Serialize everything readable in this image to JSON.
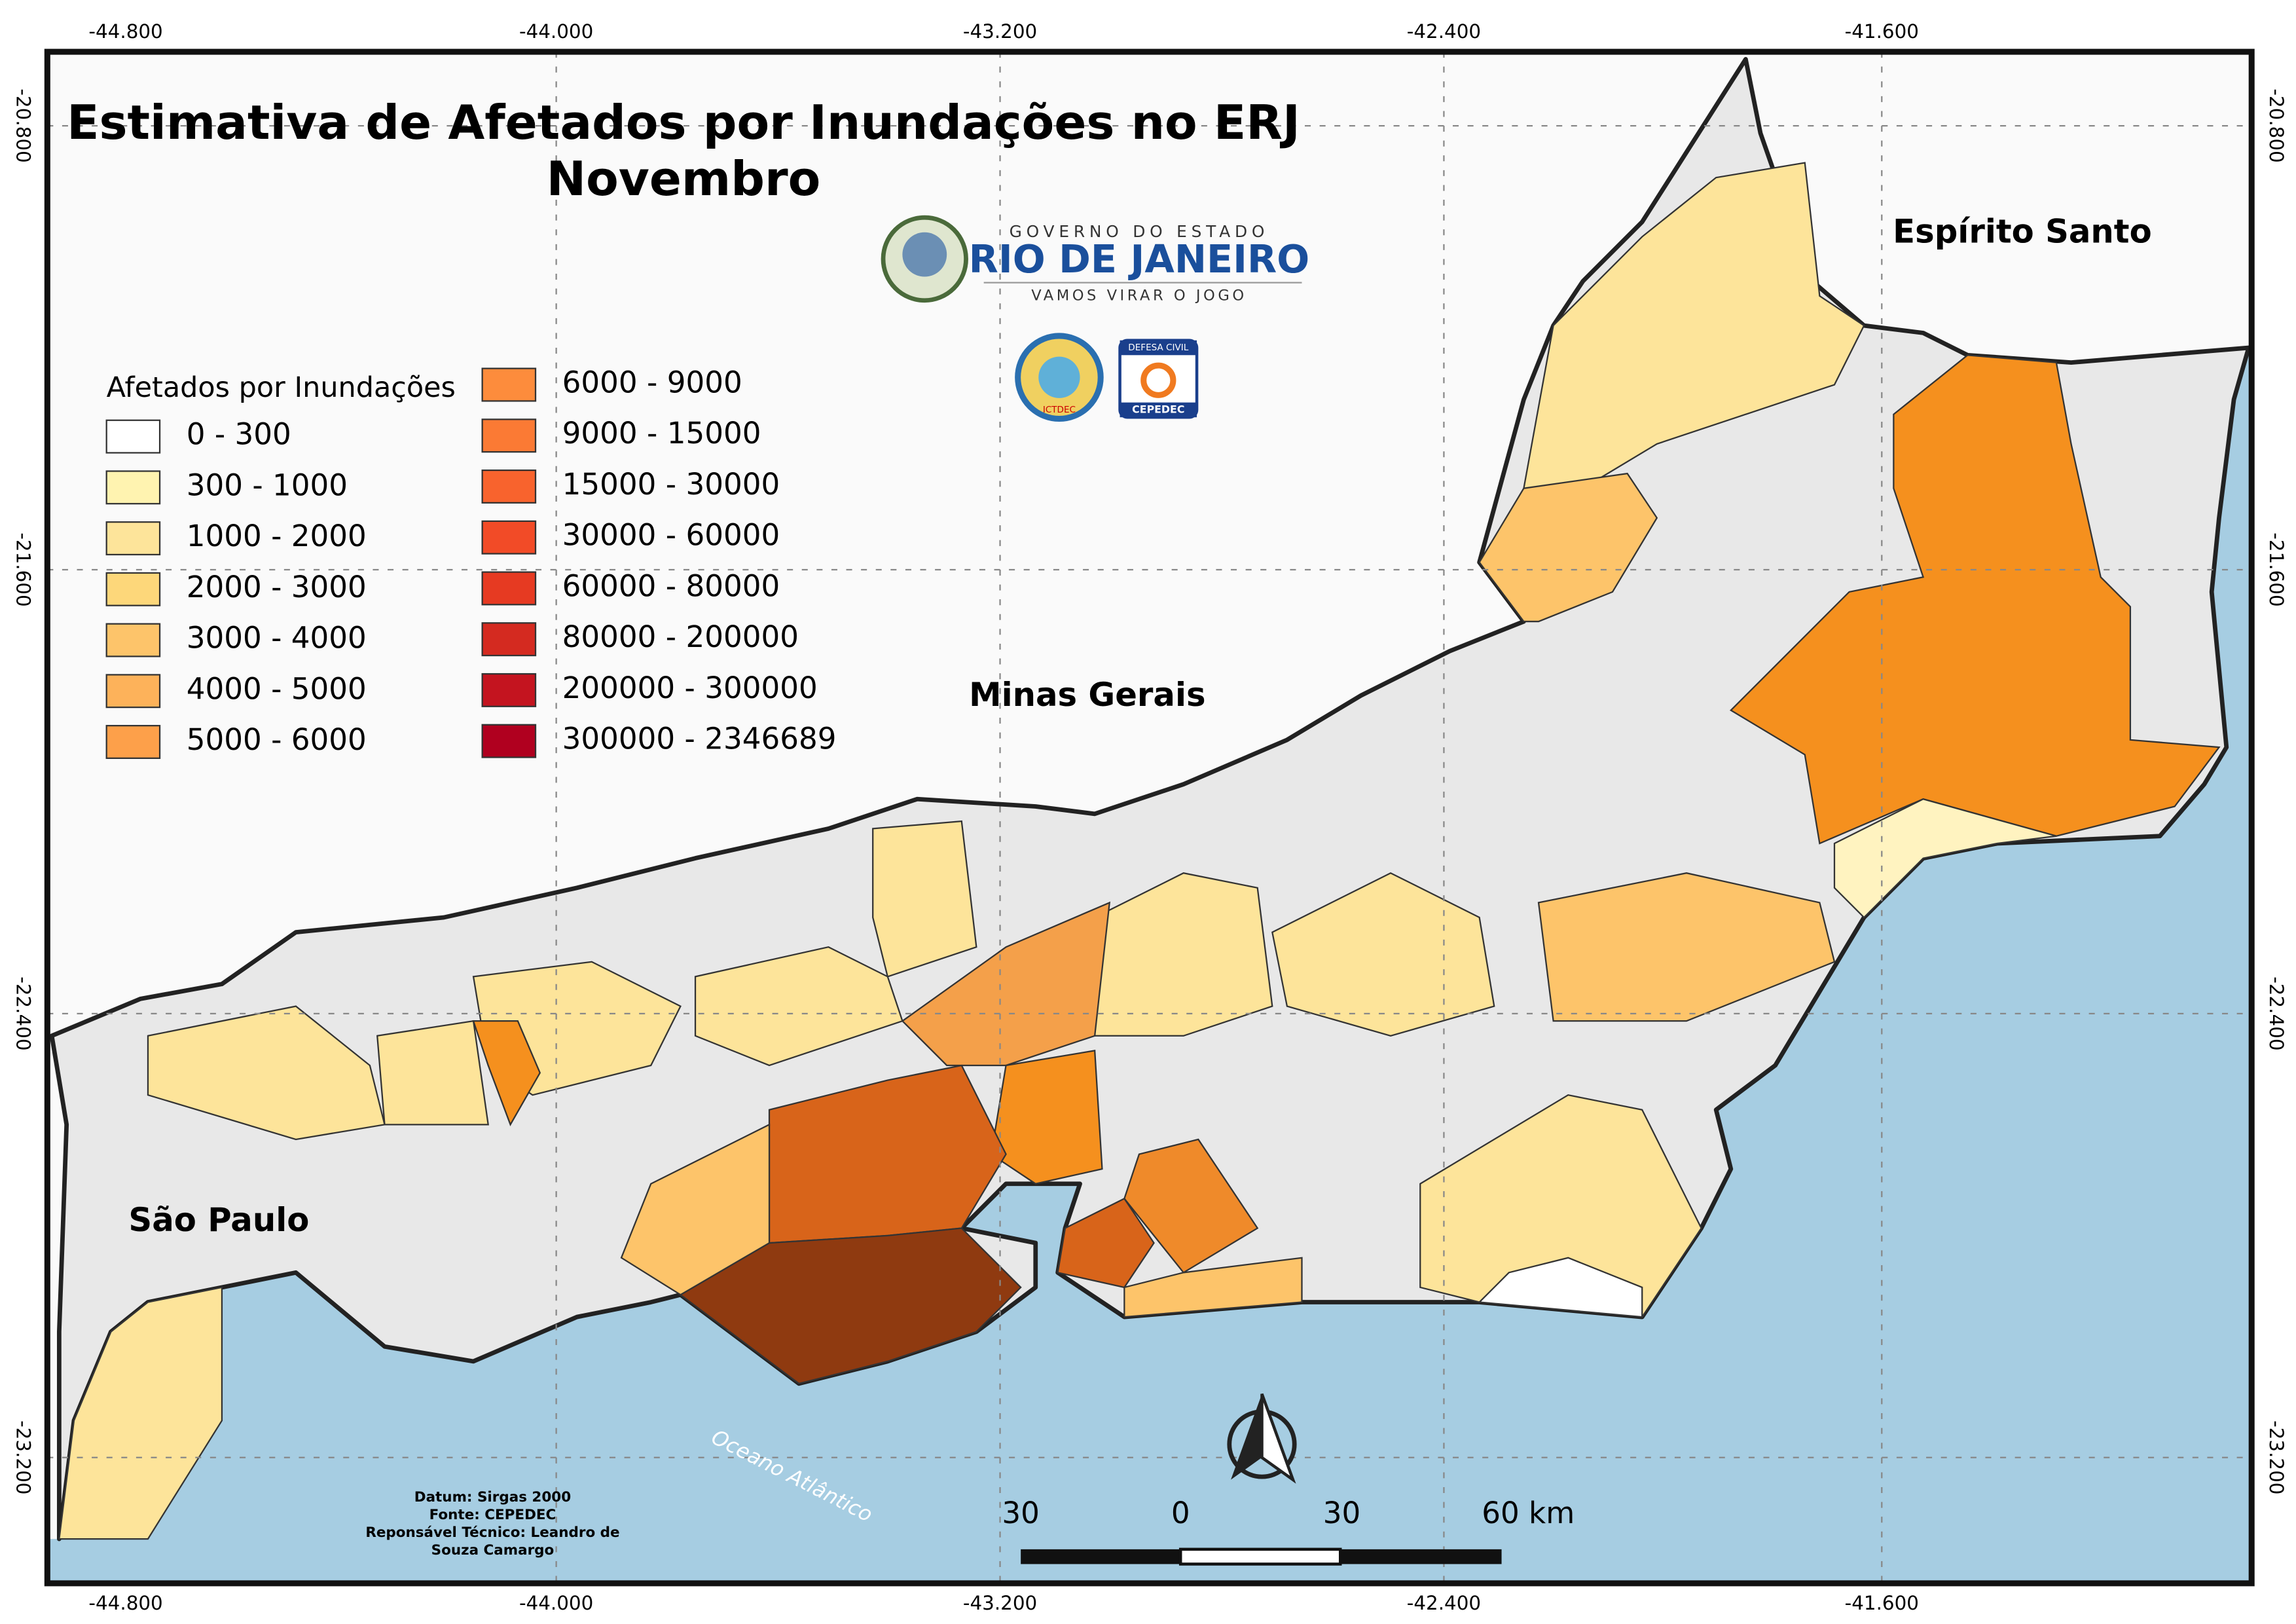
{
  "title": "Estimativa de Afetados por Inundações no ERJ",
  "subtitle": "Novembro",
  "legend": {
    "title": "Afetados por Inundações",
    "items": [
      {
        "label": "0 - 300",
        "color": "#ffffff"
      },
      {
        "label": "300 - 1000",
        "color": "#fff3b0"
      },
      {
        "label": "1000 - 2000",
        "color": "#fde49a"
      },
      {
        "label": "2000 - 3000",
        "color": "#fdd77a"
      },
      {
        "label": "3000 - 4000",
        "color": "#fdc46a"
      },
      {
        "label": "4000 - 5000",
        "color": "#fdb25a"
      },
      {
        "label": "5000 - 6000",
        "color": "#fda04a"
      },
      {
        "label": "6000 - 9000",
        "color": "#fd8c3c"
      },
      {
        "label": "9000 - 15000",
        "color": "#fb7a34"
      },
      {
        "label": "15000 - 30000",
        "color": "#f8632d"
      },
      {
        "label": "30000 - 60000",
        "color": "#f24b27"
      },
      {
        "label": "60000 - 80000",
        "color": "#e63a22"
      },
      {
        "label": "80000 - 200000",
        "color": "#d42a20"
      },
      {
        "label": "200000 - 300000",
        "color": "#c4141f"
      },
      {
        "label": "300000 - 2346689",
        "color": "#b0001f"
      }
    ]
  },
  "frame": {
    "lon_ticks": [
      "-44.800",
      "-44.000",
      "-43.200",
      "-42.400",
      "-41.600"
    ],
    "lat_ticks": [
      "-20.800",
      "-21.600",
      "-22.400",
      "-23.200"
    ]
  },
  "places": {
    "es": "Espírito Santo",
    "mg": "Minas Gerais",
    "sp": "São Paulo",
    "ocean": "Oceano Atlântico"
  },
  "logo": {
    "line1": "GOVERNO DO ESTADO",
    "line2": "RIO DE JANEIRO",
    "line3": "VAMOS VIRAR O JOGO",
    "badge1": "ICTDEC",
    "badge2_top": "DEFESA CIVIL",
    "badge2": "CEPEDEC"
  },
  "credits": [
    "Datum: Sirgas 2000",
    "Fonte: CEPEDEC",
    "Reponsável Técnico: Leandro de",
    "Souza Camargo"
  ],
  "scale_bar": [
    "30",
    "0",
    "30",
    "60 km"
  ]
}
